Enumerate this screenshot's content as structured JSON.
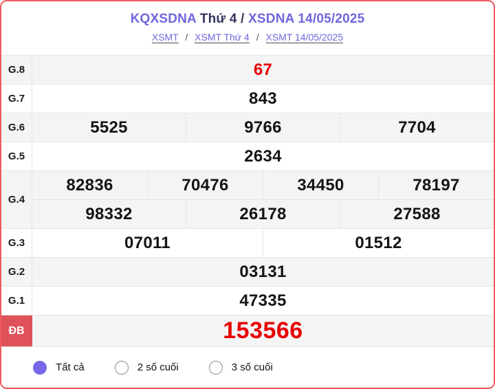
{
  "header": {
    "title": {
      "part1": "KQXSDNA",
      "part2": "Thứ 4 /",
      "part3": "XSDNA 14/05/2025"
    },
    "breadcrumb": {
      "separator": "/",
      "links": [
        "XSMT",
        "XSMT Thứ 4",
        "XSMT 14/05/2025"
      ]
    }
  },
  "results": {
    "g8": {
      "label": "G.8",
      "values": [
        "67"
      ]
    },
    "g7": {
      "label": "G.7",
      "values": [
        "843"
      ]
    },
    "g6": {
      "label": "G.6",
      "values": [
        "5525",
        "9766",
        "7704"
      ]
    },
    "g5": {
      "label": "G.5",
      "values": [
        "2634"
      ]
    },
    "g4": {
      "label": "G.4",
      "row1": [
        "82836",
        "70476",
        "34450",
        "78197"
      ],
      "row2": [
        "98332",
        "26178",
        "27588"
      ]
    },
    "g3": {
      "label": "G.3",
      "values": [
        "07011",
        "01512"
      ]
    },
    "g2": {
      "label": "G.2",
      "values": [
        "03131"
      ]
    },
    "g1": {
      "label": "G.1",
      "values": [
        "47335"
      ]
    },
    "db": {
      "label": "ĐB",
      "values": [
        "153566"
      ]
    }
  },
  "filters": {
    "options": [
      {
        "label": "Tất cả",
        "selected": true
      },
      {
        "label": "2 số cuối",
        "selected": false
      },
      {
        "label": "3 số cuối",
        "selected": false
      }
    ]
  },
  "colors": {
    "accent_purple": "#6e66dd",
    "title_dark": "#33325c",
    "result_red": "#e80000",
    "special_label_bg": "#e0525a",
    "card_border_red": "#f0595f",
    "row_alt_bg": "#f4f4f5",
    "cell_border": "#e5e5e8",
    "radio_selected": "#7668e8"
  }
}
